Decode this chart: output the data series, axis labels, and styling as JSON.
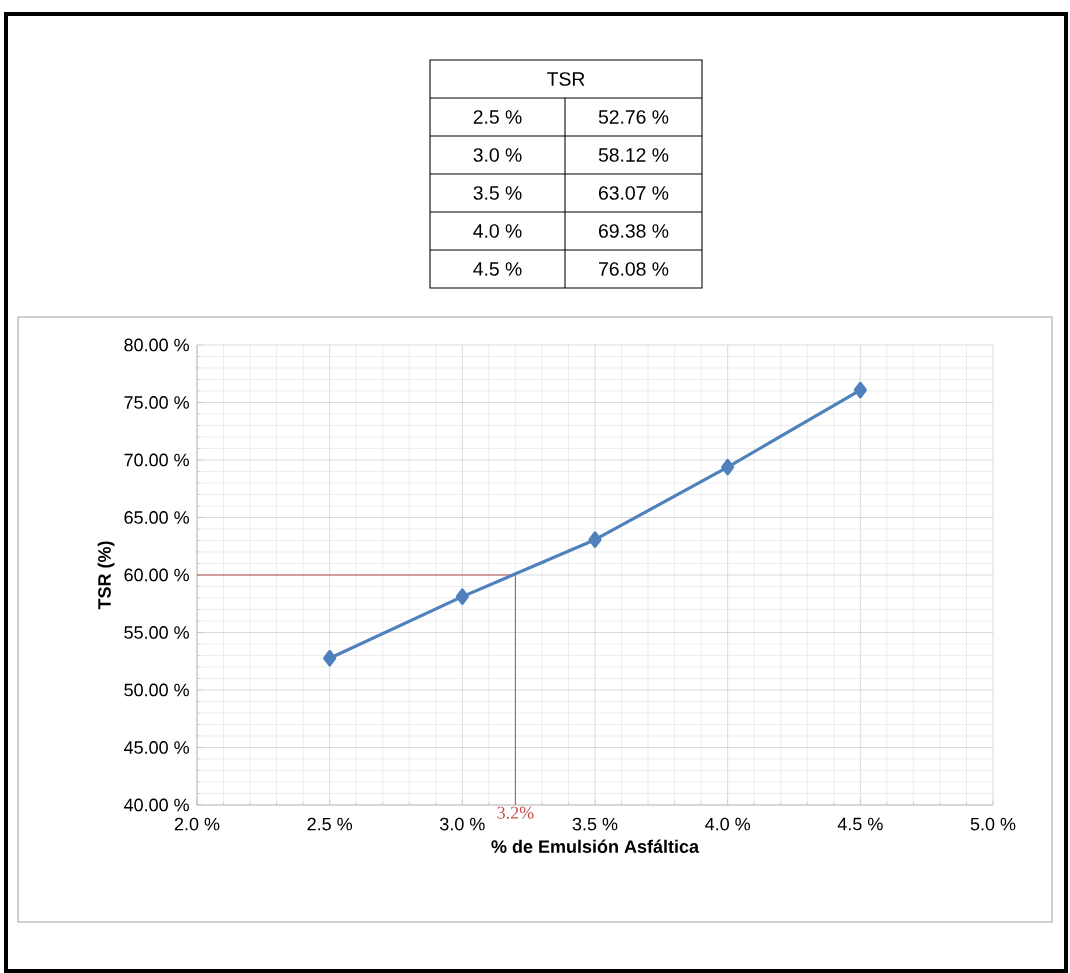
{
  "chart_data": {
    "type": "line",
    "xlabel": "% de Emulsión Asfáltica",
    "ylabel": "TSR (%)",
    "x": [
      2.5,
      3.0,
      3.5,
      4.0,
      4.5
    ],
    "series": [
      {
        "color": "#4f81bd",
        "values": [
          52.76,
          58.12,
          63.07,
          69.38,
          76.08
        ]
      }
    ],
    "annotations": [
      "TSR",
      "2.5 %",
      "52.76 %",
      "3.0 %",
      "58.12 %",
      "3.5 %",
      "63.07 %",
      "4.0 %",
      "69.38 %",
      "4.5 %",
      "76.08 %"
    ],
    "xlim": [
      2.0,
      5.0
    ],
    "xticks": [
      {
        "value": 2.0,
        "label": "2.0 %"
      },
      {
        "value": 2.5,
        "label": "2.5 %"
      },
      {
        "value": 3.0,
        "label": "3.0 %"
      },
      {
        "value": 3.5,
        "label": "3.5 %"
      },
      {
        "value": 4.0,
        "label": "4.0 %"
      },
      {
        "value": 4.5,
        "label": "4.5 %"
      },
      {
        "value": 5.0,
        "label": "5.0 %"
      }
    ],
    "ylim": [
      40,
      80
    ],
    "yticks": [
      {
        "value": 40,
        "label": "40.00 %"
      },
      {
        "value": 45,
        "label": "45.00 %"
      },
      {
        "value": 50,
        "label": "50.00 %"
      },
      {
        "value": 55,
        "label": "55.00 %"
      },
      {
        "value": 60,
        "label": "60.00 %"
      },
      {
        "value": 65,
        "label": "65.00 %"
      },
      {
        "value": 70,
        "label": "70.00 %"
      },
      {
        "value": 75,
        "label": "75.00 %"
      },
      {
        "value": 80,
        "label": "80.00 %"
      }
    ],
    "ref_lines": [
      {
        "axis": "y",
        "value": 60,
        "color": "#c0504d"
      },
      {
        "axis": "x",
        "value": 3.2,
        "label": "3.2%",
        "color": "#c0504d"
      }
    ],
    "grid": true,
    "marker": "diamond",
    "line_style": "solid"
  }
}
